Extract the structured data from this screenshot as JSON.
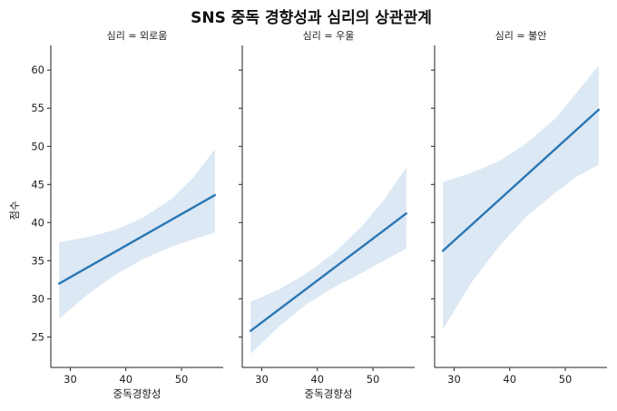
{
  "chart_data": {
    "type": "line",
    "title": "SNS 중독 경향성과 심리의 상관관계",
    "ylabel": "점수",
    "ylim": [
      21,
      63
    ],
    "yticks": [
      25,
      30,
      35,
      40,
      45,
      50,
      55,
      60
    ],
    "shared_y": true,
    "band_color": "#dce8f4",
    "line_color": "#2a77b4",
    "panels": [
      {
        "title": "심리 = 외로움",
        "xlabel": "중독경향성",
        "xlim": [
          26.5,
          57.5
        ],
        "xticks": [
          30,
          40,
          50
        ],
        "line": {
          "x": [
            28,
            56
          ],
          "y": [
            32.0,
            43.6
          ]
        },
        "ci_upper": {
          "x": [
            28,
            33,
            38,
            43,
            48,
            52,
            56
          ],
          "y": [
            37.4,
            38.1,
            39.0,
            40.6,
            43.0,
            45.8,
            49.6
          ]
        },
        "ci_lower": {
          "x": [
            28,
            33,
            38,
            43,
            48,
            52,
            56
          ],
          "y": [
            27.4,
            30.5,
            33.1,
            35.2,
            36.8,
            37.8,
            38.7
          ]
        }
      },
      {
        "title": "심리 = 우울",
        "xlabel": "중독경향성",
        "xlim": [
          26.5,
          57.5
        ],
        "xticks": [
          30,
          40,
          50
        ],
        "line": {
          "x": [
            28,
            56
          ],
          "y": [
            25.8,
            41.2
          ]
        },
        "ci_upper": {
          "x": [
            28,
            33,
            38,
            43,
            48,
            52,
            56
          ],
          "y": [
            29.6,
            31.2,
            33.3,
            36.0,
            39.5,
            43.0,
            47.2
          ]
        },
        "ci_lower": {
          "x": [
            28,
            33,
            38,
            43,
            48,
            52,
            56
          ],
          "y": [
            22.8,
            26.3,
            29.3,
            31.5,
            33.4,
            35.0,
            36.6
          ]
        }
      },
      {
        "title": "심리 = 불안",
        "xlabel": "",
        "xlim": [
          26.5,
          57.5
        ],
        "xticks": [
          30,
          40,
          50
        ],
        "line": {
          "x": [
            28,
            56
          ],
          "y": [
            36.3,
            54.8
          ]
        },
        "ci_upper": {
          "x": [
            28,
            33,
            38,
            43,
            48,
            52,
            56
          ],
          "y": [
            45.3,
            46.5,
            48.0,
            50.4,
            53.5,
            57.0,
            60.6
          ]
        },
        "ci_lower": {
          "x": [
            28,
            33,
            38,
            43,
            48,
            52,
            56
          ],
          "y": [
            26.0,
            32.0,
            36.8,
            40.8,
            43.8,
            46.0,
            47.6
          ]
        }
      }
    ]
  }
}
